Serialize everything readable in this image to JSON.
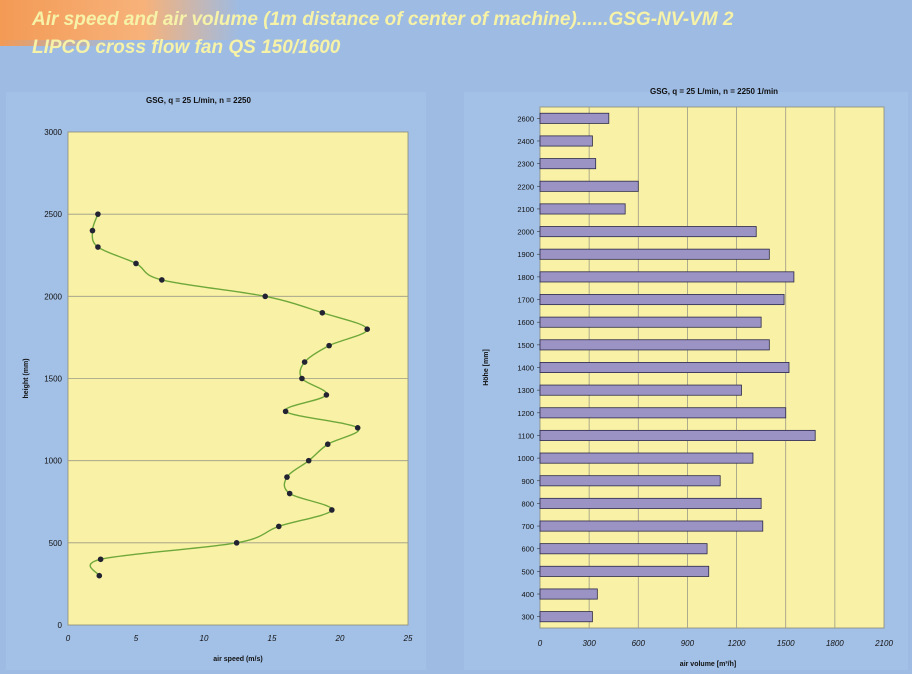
{
  "header": {
    "line1": "Air speed and air volume (1m distance of center of machine)......GSG-NV-VM 2",
    "line2": "LIPCO cross flow fan QS 150/1600"
  },
  "colors": {
    "background": "#9dbbe3",
    "plot_area": "#f9f1a5",
    "title_text": "#f6f2a8",
    "line": "#6fa83a",
    "marker": "#222233",
    "bar_fill": "#9a93c4",
    "bar_stroke": "#2c2a4a"
  },
  "chart_data": [
    {
      "type": "line",
      "title": "GSG, q = 25 L/min, n = 2250",
      "xlabel": "air speed (m/s)",
      "ylabel": "height (mm)",
      "xlim": [
        0,
        25
      ],
      "ylim": [
        0,
        3000
      ],
      "x_ticks": [
        0,
        5,
        10,
        15,
        20,
        25
      ],
      "y_ticks": [
        0,
        500,
        1000,
        1500,
        2000,
        2500,
        3000
      ],
      "grid": "horizontal",
      "points": [
        {
          "x": 2.3,
          "y": 300
        },
        {
          "x": 2.4,
          "y": 400
        },
        {
          "x": 12.4,
          "y": 500
        },
        {
          "x": 15.5,
          "y": 600
        },
        {
          "x": 19.4,
          "y": 700
        },
        {
          "x": 16.3,
          "y": 800
        },
        {
          "x": 16.1,
          "y": 900
        },
        {
          "x": 17.7,
          "y": 1000
        },
        {
          "x": 19.1,
          "y": 1100
        },
        {
          "x": 21.3,
          "y": 1200
        },
        {
          "x": 16.0,
          "y": 1300
        },
        {
          "x": 19.0,
          "y": 1400
        },
        {
          "x": 17.2,
          "y": 1500
        },
        {
          "x": 17.4,
          "y": 1600
        },
        {
          "x": 19.2,
          "y": 1700
        },
        {
          "x": 22.0,
          "y": 1800
        },
        {
          "x": 18.7,
          "y": 1900
        },
        {
          "x": 14.5,
          "y": 2000
        },
        {
          "x": 6.9,
          "y": 2100
        },
        {
          "x": 5.0,
          "y": 2200
        },
        {
          "x": 2.2,
          "y": 2300
        },
        {
          "x": 1.8,
          "y": 2400
        },
        {
          "x": 2.2,
          "y": 2500
        }
      ]
    },
    {
      "type": "bar",
      "orientation": "horizontal",
      "title": "GSG, q = 25 L/min, n = 2250 1/min",
      "xlabel": "air volume [m³/h]",
      "ylabel": "Höhe [mm]",
      "xlim": [
        0,
        2100
      ],
      "x_ticks": [
        0,
        300,
        600,
        900,
        1200,
        1500,
        1800,
        2100
      ],
      "grid": "vertical",
      "categories": [
        "300",
        "400",
        "500",
        "600",
        "700",
        "800",
        "900",
        "1000",
        "1100",
        "1200",
        "1300",
        "1400",
        "1500",
        "1600",
        "1700",
        "1800",
        "1900",
        "2000",
        "2100",
        "2200",
        "2300",
        "2400",
        "2600"
      ],
      "values": [
        320,
        350,
        1030,
        1020,
        1360,
        1350,
        1100,
        1300,
        1680,
        1500,
        1230,
        1520,
        1400,
        1350,
        1490,
        1550,
        1400,
        1320,
        520,
        600,
        340,
        320,
        420
      ]
    }
  ]
}
